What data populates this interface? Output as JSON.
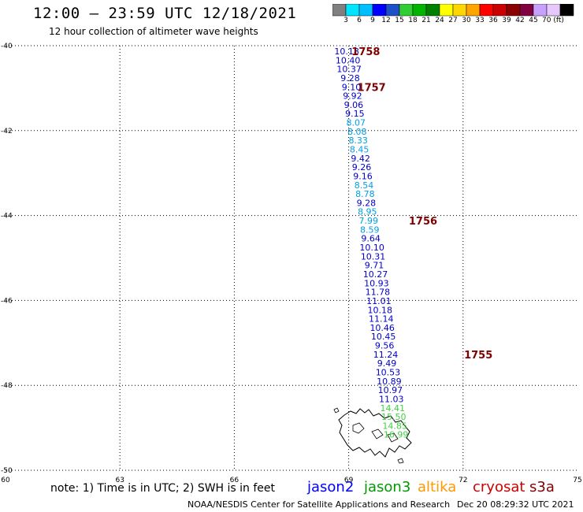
{
  "header": {
    "title": "12:00 – 23:59 UTC 12/18/2021",
    "subtitle": "12 hour collection of altimeter wave heights"
  },
  "colorbar": {
    "colors": [
      "#808080",
      "#00e5ff",
      "#00bfff",
      "#0000ff",
      "#1e50c8",
      "#32cd32",
      "#00b400",
      "#008000",
      "#ffff00",
      "#ffd700",
      "#ffa500",
      "#ff0000",
      "#cc0000",
      "#8b0000",
      "#800040",
      "#c8a0ff",
      "#e6c8ff",
      "#000000"
    ],
    "labels": [
      "3",
      "6",
      "9",
      "12",
      "15",
      "18",
      "21",
      "24",
      "27",
      "30",
      "33",
      "36",
      "39",
      "42",
      "45",
      "70 (ft)"
    ]
  },
  "chart_data": {
    "type": "scatter",
    "x_axis": {
      "range": [
        60,
        75
      ],
      "ticks": [
        "60",
        "63",
        "66",
        "69",
        "72",
        "75"
      ],
      "tick_values": [
        60,
        63,
        66,
        69,
        72,
        75
      ]
    },
    "y_axis": {
      "range": [
        -50,
        -40
      ],
      "ticks": [
        "-40",
        "-42",
        "-44",
        "-46",
        "-48",
        "-50"
      ],
      "tick_values": [
        -40,
        -42,
        -44,
        -46,
        -48,
        -50
      ]
    },
    "grid": true,
    "track_points": [
      {
        "label": "10.18",
        "lon": 68.95,
        "lat": -40.13,
        "color": "#0000cc"
      },
      {
        "label": "10.40",
        "lon": 68.98,
        "lat": -40.34,
        "color": "#0000cc"
      },
      {
        "label": "10.37",
        "lon": 69.01,
        "lat": -40.55,
        "color": "#0000cc"
      },
      {
        "label": "9.28",
        "lon": 69.04,
        "lat": -40.76,
        "color": "#0000cc"
      },
      {
        "label": "9.10",
        "lon": 69.07,
        "lat": -40.97,
        "color": "#0000cc"
      },
      {
        "label": "9.92",
        "lon": 69.1,
        "lat": -41.18,
        "color": "#0000cc"
      },
      {
        "label": "9.06",
        "lon": 69.13,
        "lat": -41.39,
        "color": "#0000cc"
      },
      {
        "label": "9.15",
        "lon": 69.16,
        "lat": -41.6,
        "color": "#0000cc"
      },
      {
        "label": "8.07",
        "lon": 69.19,
        "lat": -41.81,
        "color": "#00a0e0"
      },
      {
        "label": "8.08",
        "lon": 69.22,
        "lat": -42.02,
        "color": "#00a0e0"
      },
      {
        "label": "8.33",
        "lon": 69.25,
        "lat": -42.23,
        "color": "#00a0e0"
      },
      {
        "label": "8.45",
        "lon": 69.28,
        "lat": -42.44,
        "color": "#00a0e0"
      },
      {
        "label": "9.42",
        "lon": 69.31,
        "lat": -42.65,
        "color": "#0000cc"
      },
      {
        "label": "9.26",
        "lon": 69.34,
        "lat": -42.86,
        "color": "#0000cc"
      },
      {
        "label": "9.16",
        "lon": 69.37,
        "lat": -43.07,
        "color": "#0000cc"
      },
      {
        "label": "8.54",
        "lon": 69.4,
        "lat": -43.28,
        "color": "#00a0e0"
      },
      {
        "label": "8.78",
        "lon": 69.43,
        "lat": -43.49,
        "color": "#00a0e0"
      },
      {
        "label": "9.28",
        "lon": 69.46,
        "lat": -43.7,
        "color": "#0000cc"
      },
      {
        "label": "8.95",
        "lon": 69.49,
        "lat": -43.91,
        "color": "#00a0e0"
      },
      {
        "label": "7.99",
        "lon": 69.52,
        "lat": -44.12,
        "color": "#00a0e0"
      },
      {
        "label": "8.59",
        "lon": 69.55,
        "lat": -44.33,
        "color": "#00a0e0"
      },
      {
        "label": "9.64",
        "lon": 69.58,
        "lat": -44.54,
        "color": "#0000cc"
      },
      {
        "label": "10.10",
        "lon": 69.61,
        "lat": -44.75,
        "color": "#0000cc"
      },
      {
        "label": "10.31",
        "lon": 69.64,
        "lat": -44.96,
        "color": "#0000cc"
      },
      {
        "label": "9.71",
        "lon": 69.67,
        "lat": -45.17,
        "color": "#0000cc"
      },
      {
        "label": "10.27",
        "lon": 69.7,
        "lat": -45.38,
        "color": "#0000cc"
      },
      {
        "label": "10.93",
        "lon": 69.73,
        "lat": -45.59,
        "color": "#0000cc"
      },
      {
        "label": "11.78",
        "lon": 69.76,
        "lat": -45.8,
        "color": "#0000cc"
      },
      {
        "label": "11.01",
        "lon": 69.79,
        "lat": -46.01,
        "color": "#0000cc"
      },
      {
        "label": "10.18",
        "lon": 69.82,
        "lat": -46.22,
        "color": "#0000cc"
      },
      {
        "label": "11.14",
        "lon": 69.85,
        "lat": -46.43,
        "color": "#0000cc"
      },
      {
        "label": "10.46",
        "lon": 69.88,
        "lat": -46.64,
        "color": "#0000cc"
      },
      {
        "label": "10.45",
        "lon": 69.91,
        "lat": -46.85,
        "color": "#0000cc"
      },
      {
        "label": "9.56",
        "lon": 69.94,
        "lat": -47.06,
        "color": "#0000cc"
      },
      {
        "label": "11.24",
        "lon": 69.97,
        "lat": -47.27,
        "color": "#0000cc"
      },
      {
        "label": "9.49",
        "lon": 70.0,
        "lat": -47.48,
        "color": "#0000cc"
      },
      {
        "label": "10.53",
        "lon": 70.03,
        "lat": -47.69,
        "color": "#0000cc"
      },
      {
        "label": "10.89",
        "lon": 70.06,
        "lat": -47.9,
        "color": "#0000cc"
      },
      {
        "label": "10.97",
        "lon": 70.09,
        "lat": -48.11,
        "color": "#0000cc"
      },
      {
        "label": "11.03",
        "lon": 70.12,
        "lat": -48.32,
        "color": "#0000cc"
      },
      {
        "label": "14.41",
        "lon": 70.15,
        "lat": -48.53,
        "color": "#40d040"
      },
      {
        "label": "15.50",
        "lon": 70.18,
        "lat": -48.74,
        "color": "#40d040"
      },
      {
        "label": "14.85",
        "lon": 70.21,
        "lat": -48.95,
        "color": "#40d040"
      },
      {
        "label": "16.99",
        "lon": 70.24,
        "lat": -49.16,
        "color": "#40d040"
      }
    ],
    "time_labels": [
      {
        "label": "1758",
        "lon": 69.45,
        "lat": -40.13
      },
      {
        "label": "1757",
        "lon": 69.6,
        "lat": -40.97
      },
      {
        "label": "1756",
        "lon": 70.95,
        "lat": -44.12
      },
      {
        "label": "1755",
        "lon": 72.4,
        "lat": -47.27
      }
    ]
  },
  "footer": {
    "note": "note: 1) Time is in UTC; 2) SWH is in feet",
    "satellites": [
      {
        "name": "jason2",
        "color": "#0000ff"
      },
      {
        "name": "jason3",
        "color": "#009900"
      },
      {
        "name": "altika",
        "color": "#ff9900"
      },
      {
        "name": "cryosat",
        "color": "#cc0000"
      },
      {
        "name": "s3a",
        "color": "#800000"
      }
    ],
    "credit": "NOAA/NESDIS Center for Satellite Applications and Research",
    "timestamp": "Dec 20 08:29:32 UTC 2021"
  }
}
